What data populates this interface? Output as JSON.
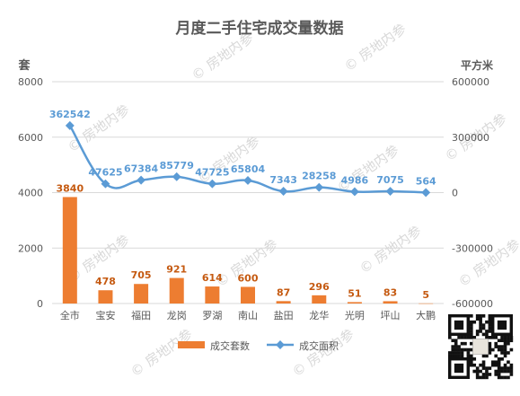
{
  "chart_data": {
    "type": "bar",
    "title": "月度二手住宅成交量数据",
    "categories": [
      "全市",
      "宝安",
      "福田",
      "龙岗",
      "罗湖",
      "南山",
      "盐田",
      "龙华",
      "光明",
      "坪山",
      "大鹏"
    ],
    "y_left_label": "套",
    "y_right_label": "平方米",
    "y_left_ticks": [
      "8000",
      "6000",
      "4000",
      "2000",
      "0"
    ],
    "y_right_ticks": [
      "600000",
      "300000",
      "0",
      "-300000",
      "-600000"
    ],
    "ylim_left": [
      0,
      8000
    ],
    "ylim_right": [
      -600000,
      600000
    ],
    "grid": true,
    "legend_position": "bottom",
    "series": [
      {
        "name": "成交套数",
        "kind": "bar",
        "axis": "left",
        "color": "#ed7d31",
        "label_color": "#c55a11",
        "values": [
          3840,
          478,
          705,
          921,
          614,
          600,
          87,
          296,
          51,
          83,
          5
        ],
        "labels": [
          "3840",
          "478",
          "705",
          "921",
          "614",
          "600",
          "87",
          "296",
          "51",
          "83",
          "5"
        ]
      },
      {
        "name": "成交面积",
        "kind": "line",
        "axis": "right",
        "color": "#5b9bd5",
        "label_color": "#5b9bd5",
        "values": [
          362542,
          47625,
          67384,
          85779,
          47725,
          65804,
          7343,
          28258,
          4986,
          7075,
          564
        ],
        "labels": [
          "362542",
          "47625",
          "67384",
          "85779",
          "47725",
          "65804",
          "7343",
          "28258",
          "4986",
          "7075",
          "564"
        ]
      }
    ]
  },
  "watermark_text": "房地内参",
  "colors": {
    "title": "#595959",
    "axis_text": "#595959",
    "grid": "#d9d9d9"
  },
  "qr_icon": "qr-code-icon"
}
